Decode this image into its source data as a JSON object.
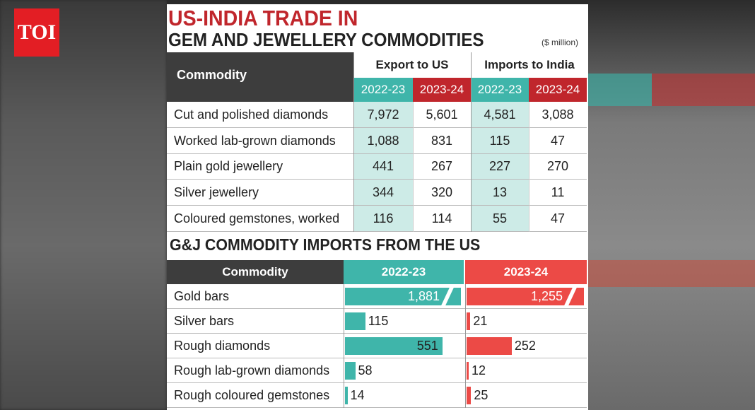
{
  "logo": "TOI",
  "title_line1": "US-INDIA TRADE IN",
  "title_line2": "GEM AND JEWELLERY COMMODITIES",
  "unit": "($ million)",
  "colors": {
    "teal": "#3fb5aa",
    "teal_light": "#cdebe7",
    "red": "#c0262c",
    "red_bar": "#ec4a46",
    "dark": "#3d3d3d"
  },
  "chart_data": [
    {
      "type": "table",
      "title": "US-INDIA TRADE IN GEM AND JEWELLERY COMMODITIES",
      "unit": "($ million)",
      "header": {
        "commodity": "Commodity",
        "group1": "Export to US",
        "group2": "Imports to India",
        "years": [
          "2022-23",
          "2023-24",
          "2022-23",
          "2023-24"
        ]
      },
      "rows": [
        {
          "label": "Cut and polished diamonds",
          "values": [
            "7,972",
            "5,601",
            "4,581",
            "3,088"
          ]
        },
        {
          "label": "Worked lab-grown diamonds",
          "values": [
            "1,088",
            "831",
            "115",
            "47"
          ]
        },
        {
          "label": "Plain gold jewellery",
          "values": [
            "441",
            "267",
            "227",
            "270"
          ]
        },
        {
          "label": "Silver jewellery",
          "values": [
            "344",
            "320",
            "13",
            "11"
          ]
        },
        {
          "label": "Coloured gemstones, worked",
          "values": [
            "116",
            "114",
            "55",
            "47"
          ]
        }
      ]
    },
    {
      "type": "bar",
      "title": "G&J COMMODITY IMPORTS FROM THE US",
      "header": {
        "commodity": "Commodity"
      },
      "categories": [
        "Gold bars",
        "Silver bars",
        "Rough diamonds",
        "Rough lab-grown diamonds",
        "Rough coloured gemstones"
      ],
      "series": [
        {
          "name": "2022-23",
          "values": [
            1881,
            115,
            551,
            58,
            14
          ],
          "labels": [
            "1,881",
            "115",
            "551",
            "58",
            "14"
          ],
          "broken": [
            true,
            false,
            false,
            false,
            false
          ]
        },
        {
          "name": "2023-24",
          "values": [
            1255,
            21,
            252,
            12,
            25
          ],
          "labels": [
            "1,255",
            "21",
            "252",
            "12",
            "25"
          ],
          "broken": [
            true,
            false,
            false,
            false,
            false
          ]
        }
      ],
      "scale_max": 600
    }
  ]
}
